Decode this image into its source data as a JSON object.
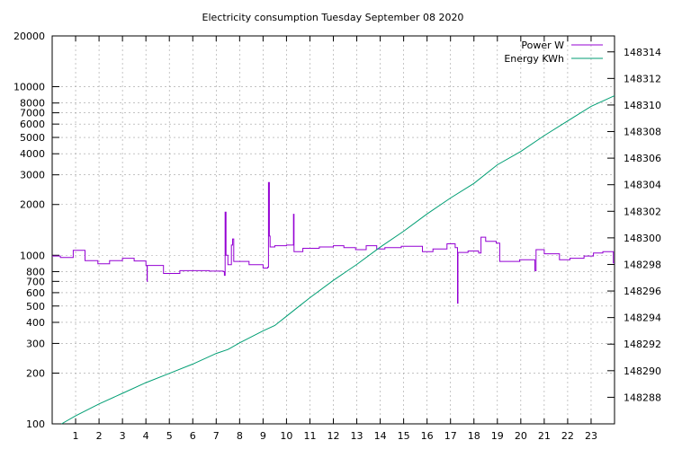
{
  "chart_data": {
    "type": "line",
    "title": "Electricity consumption Tuesday September 08 2020",
    "x": {
      "range": [
        0,
        24
      ],
      "ticks": [
        1,
        2,
        3,
        4,
        5,
        6,
        7,
        8,
        9,
        10,
        11,
        12,
        13,
        14,
        15,
        16,
        17,
        18,
        19,
        20,
        21,
        22,
        23
      ],
      "grid": true
    },
    "y_left": {
      "scale": "log",
      "range": [
        100,
        20000
      ],
      "ticks": [
        100,
        200,
        300,
        400,
        500,
        600,
        700,
        800,
        1000,
        2000,
        3000,
        4000,
        5000,
        6000,
        7000,
        8000,
        10000,
        20000
      ],
      "grid": true
    },
    "y_right": {
      "scale": "linear",
      "range": [
        148286.0,
        148315.2
      ],
      "ticks": [
        148288,
        148290,
        148292,
        148294,
        148296,
        148298,
        148300,
        148302,
        148304,
        148306,
        148308,
        148310,
        148312,
        148314
      ]
    },
    "legend": {
      "position": "top-right"
    },
    "series": [
      {
        "name": "Power W",
        "axis": "left",
        "color": "#9400d3",
        "style": "steps",
        "points": [
          [
            0.0,
            990
          ],
          [
            0.35,
            970
          ],
          [
            0.9,
            1070
          ],
          [
            1.4,
            930
          ],
          [
            1.95,
            890
          ],
          [
            2.45,
            930
          ],
          [
            3.0,
            960
          ],
          [
            3.5,
            925
          ],
          [
            4.0,
            870
          ],
          [
            4.05,
            700
          ],
          [
            4.06,
            870
          ],
          [
            4.75,
            780
          ],
          [
            5.45,
            810
          ],
          [
            6.7,
            805
          ],
          [
            7.3,
            800
          ],
          [
            7.35,
            760
          ],
          [
            7.38,
            1800
          ],
          [
            7.42,
            1000
          ],
          [
            7.5,
            880
          ],
          [
            7.65,
            1150
          ],
          [
            7.7,
            1250
          ],
          [
            7.75,
            920
          ],
          [
            8.4,
            880
          ],
          [
            9.0,
            840
          ],
          [
            9.2,
            850
          ],
          [
            9.23,
            2700
          ],
          [
            9.27,
            1300
          ],
          [
            9.3,
            1120
          ],
          [
            9.5,
            1140
          ],
          [
            10.0,
            1150
          ],
          [
            10.3,
            1750
          ],
          [
            10.32,
            1050
          ],
          [
            10.7,
            1100
          ],
          [
            11.4,
            1120
          ],
          [
            12.0,
            1140
          ],
          [
            12.45,
            1110
          ],
          [
            12.95,
            1080
          ],
          [
            13.4,
            1140
          ],
          [
            13.85,
            1090
          ],
          [
            14.2,
            1110
          ],
          [
            14.9,
            1130
          ],
          [
            15.8,
            1050
          ],
          [
            16.25,
            1090
          ],
          [
            16.85,
            1170
          ],
          [
            17.2,
            1110
          ],
          [
            17.3,
            520
          ],
          [
            17.32,
            1040
          ],
          [
            17.75,
            1060
          ],
          [
            18.2,
            1030
          ],
          [
            18.3,
            1280
          ],
          [
            18.5,
            1210
          ],
          [
            18.95,
            1180
          ],
          [
            19.1,
            920
          ],
          [
            19.95,
            940
          ],
          [
            20.6,
            810
          ],
          [
            20.65,
            1080
          ],
          [
            21.0,
            1020
          ],
          [
            21.65,
            940
          ],
          [
            22.1,
            960
          ],
          [
            22.7,
            990
          ],
          [
            23.1,
            1030
          ],
          [
            23.5,
            1050
          ],
          [
            23.95,
            900
          ],
          [
            24.0,
            900
          ]
        ]
      },
      {
        "name": "Energy KWh",
        "axis": "right",
        "color": "#009e73",
        "style": "line",
        "points": [
          [
            0.4,
            148286.0
          ],
          [
            1.0,
            148286.6
          ],
          [
            2.0,
            148287.5
          ],
          [
            3.0,
            148288.3
          ],
          [
            4.0,
            148289.1
          ],
          [
            5.0,
            148289.8
          ],
          [
            6.0,
            148290.5
          ],
          [
            7.0,
            148291.3
          ],
          [
            7.5,
            148291.6
          ],
          [
            8.0,
            148292.1
          ],
          [
            9.0,
            148293.0
          ],
          [
            9.5,
            148293.4
          ],
          [
            10.0,
            148294.1
          ],
          [
            10.5,
            148294.8
          ],
          [
            11.0,
            148295.5
          ],
          [
            12.0,
            148296.8
          ],
          [
            13.0,
            148298.0
          ],
          [
            14.0,
            148299.3
          ],
          [
            15.0,
            148300.5
          ],
          [
            16.0,
            148301.8
          ],
          [
            17.0,
            148303.0
          ],
          [
            18.0,
            148304.1
          ],
          [
            19.0,
            148305.5
          ],
          [
            20.0,
            148306.5
          ],
          [
            21.0,
            148307.7
          ],
          [
            22.0,
            148308.8
          ],
          [
            23.0,
            148309.9
          ],
          [
            24.0,
            148310.7
          ]
        ]
      }
    ]
  }
}
